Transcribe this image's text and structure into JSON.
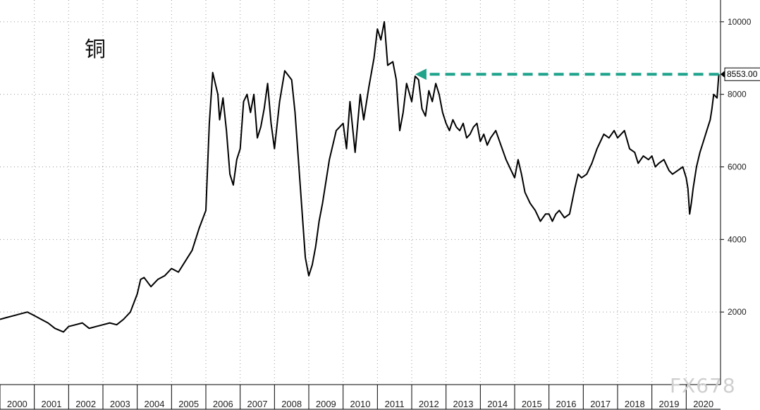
{
  "chart_data": {
    "type": "line",
    "title": "铜",
    "xlabel": "",
    "ylabel": "",
    "ylim": [
      0,
      10600
    ],
    "xlim": [
      2000.0,
      2021.0
    ],
    "y_axis_position": "right",
    "grid": true,
    "yticks": [
      "2000",
      "4000",
      "6000",
      "8000",
      "10000"
    ],
    "xticks": [
      "2000",
      "2001",
      "2002",
      "2003",
      "2004",
      "2005",
      "2006",
      "2007",
      "2008",
      "2009",
      "2010",
      "2011",
      "2012",
      "2013",
      "2014",
      "2015",
      "2016",
      "2017",
      "2018",
      "2019",
      "2020"
    ],
    "last_value_label": "8553.00",
    "reference_arrow": {
      "from_x": 2020.95,
      "to_x": 2012.1,
      "y": 8553,
      "color": "#1fa38b"
    },
    "series": [
      {
        "color": "#000000",
        "x": [
          2000.0,
          2000.2,
          2000.4,
          2000.6,
          2000.8,
          2001.0,
          2001.2,
          2001.4,
          2001.6,
          2001.85,
          2002.0,
          2002.2,
          2002.4,
          2002.6,
          2002.8,
          2003.0,
          2003.2,
          2003.4,
          2003.6,
          2003.8,
          2004.0,
          2004.1,
          2004.2,
          2004.4,
          2004.6,
          2004.8,
          2005.0,
          2005.2,
          2005.4,
          2005.6,
          2005.8,
          2006.0,
          2006.1,
          2006.2,
          2006.35,
          2006.4,
          2006.5,
          2006.6,
          2006.7,
          2006.8,
          2006.9,
          2007.0,
          2007.1,
          2007.2,
          2007.3,
          2007.4,
          2007.5,
          2007.6,
          2007.7,
          2007.8,
          2007.9,
          2008.0,
          2008.15,
          2008.3,
          2008.5,
          2008.6,
          2008.75,
          2008.9,
          2009.0,
          2009.1,
          2009.2,
          2009.3,
          2009.4,
          2009.6,
          2009.8,
          2010.0,
          2010.1,
          2010.2,
          2010.35,
          2010.5,
          2010.6,
          2010.75,
          2010.9,
          2011.0,
          2011.1,
          2011.2,
          2011.3,
          2011.45,
          2011.55,
          2011.65,
          2011.75,
          2011.85,
          2012.0,
          2012.1,
          2012.2,
          2012.3,
          2012.4,
          2012.5,
          2012.6,
          2012.7,
          2012.8,
          2012.9,
          2013.0,
          2013.1,
          2013.2,
          2013.3,
          2013.4,
          2013.5,
          2013.6,
          2013.7,
          2013.8,
          2013.9,
          2014.0,
          2014.1,
          2014.2,
          2014.3,
          2014.45,
          2014.6,
          2014.75,
          2014.9,
          2015.0,
          2015.1,
          2015.2,
          2015.3,
          2015.45,
          2015.6,
          2015.75,
          2015.9,
          2016.0,
          2016.1,
          2016.2,
          2016.3,
          2016.45,
          2016.6,
          2016.75,
          2016.85,
          2016.95,
          2017.1,
          2017.25,
          2017.4,
          2017.6,
          2017.75,
          2017.9,
          2018.0,
          2018.1,
          2018.2,
          2018.35,
          2018.5,
          2018.6,
          2018.75,
          2018.9,
          2019.0,
          2019.1,
          2019.2,
          2019.35,
          2019.5,
          2019.6,
          2019.75,
          2019.9,
          2020.0,
          2020.05,
          2020.1,
          2020.15,
          2020.2,
          2020.3,
          2020.4,
          2020.5,
          2020.6,
          2020.7,
          2020.75,
          2020.8,
          2020.9,
          2020.95
        ],
        "values": [
          1800,
          1850,
          1900,
          1950,
          2000,
          1900,
          1800,
          1700,
          1550,
          1450,
          1600,
          1650,
          1700,
          1550,
          1600,
          1650,
          1700,
          1650,
          1800,
          2000,
          2500,
          2900,
          2950,
          2700,
          2900,
          3000,
          3200,
          3100,
          3400,
          3700,
          4300,
          4800,
          7200,
          8600,
          8000,
          7300,
          7900,
          7000,
          5800,
          5500,
          6200,
          6500,
          7800,
          8000,
          7500,
          8000,
          6800,
          7100,
          7600,
          8300,
          7200,
          6500,
          7800,
          8650,
          8400,
          7500,
          5500,
          3500,
          3000,
          3300,
          3800,
          4500,
          5000,
          6200,
          7000,
          7200,
          6500,
          7800,
          6400,
          8000,
          7300,
          8200,
          9000,
          9800,
          9500,
          10000,
          8800,
          8900,
          8400,
          7000,
          7500,
          8300,
          7800,
          8500,
          8400,
          7600,
          7400,
          8100,
          7800,
          8300,
          8000,
          7500,
          7200,
          7000,
          7300,
          7100,
          7000,
          7200,
          6800,
          6900,
          7100,
          7200,
          6700,
          6900,
          6600,
          6800,
          7000,
          6600,
          6200,
          5900,
          5700,
          6200,
          5800,
          5300,
          5000,
          4800,
          4500,
          4700,
          4700,
          4500,
          4700,
          4800,
          4600,
          4700,
          5400,
          5800,
          5700,
          5800,
          6100,
          6500,
          6900,
          6800,
          7000,
          6800,
          6900,
          7000,
          6500,
          6400,
          6100,
          6300,
          6200,
          6300,
          6000,
          6100,
          6200,
          5900,
          5800,
          5900,
          6000,
          5700,
          5400,
          4700,
          5000,
          5400,
          6000,
          6400,
          6700,
          7000,
          7300,
          7600,
          8000,
          7900,
          8553
        ]
      }
    ]
  },
  "watermark": "FX678"
}
